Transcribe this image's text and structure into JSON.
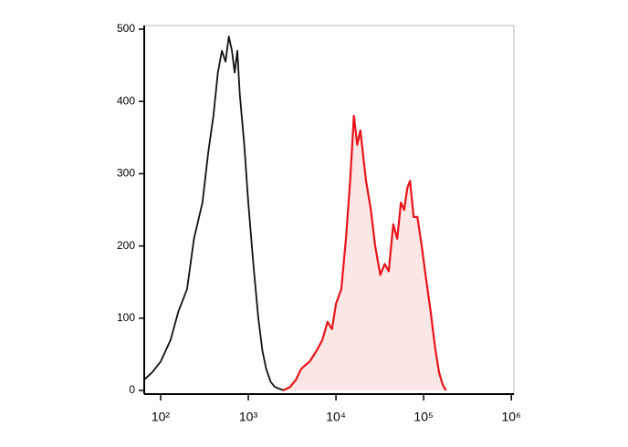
{
  "chart_data": {
    "type": "line",
    "xscale": "log",
    "xlim": [
      65,
      1070000
    ],
    "ylim": [
      -5,
      505
    ],
    "xticks": [
      {
        "value": 100,
        "label": "10²"
      },
      {
        "value": 1000,
        "label": "10³"
      },
      {
        "value": 10000,
        "label": "10⁴"
      },
      {
        "value": 100000,
        "label": "10⁵"
      },
      {
        "value": 1000000,
        "label": "10⁶"
      }
    ],
    "yticks": [
      0,
      100,
      200,
      300,
      400,
      500
    ],
    "series": [
      {
        "color": "#111111",
        "fill": null,
        "x": [
          65,
          80,
          100,
          130,
          160,
          200,
          240,
          300,
          350,
          400,
          450,
          500,
          550,
          600,
          650,
          700,
          750,
          800,
          900,
          1000,
          1150,
          1300,
          1450,
          1600,
          1800,
          2000,
          2300,
          2600
        ],
        "values": [
          15,
          25,
          40,
          70,
          110,
          140,
          210,
          260,
          330,
          380,
          440,
          470,
          455,
          490,
          470,
          440,
          470,
          410,
          340,
          260,
          170,
          100,
          55,
          30,
          12,
          5,
          2,
          0
        ]
      },
      {
        "color": "#e8141a",
        "fill": "#fde6e6",
        "x": [
          2500,
          3000,
          3500,
          4000,
          5000,
          6000,
          7000,
          8000,
          9000,
          10000,
          11500,
          13000,
          14500,
          16000,
          17500,
          19000,
          22000,
          25000,
          28000,
          32000,
          36000,
          40000,
          45000,
          50000,
          55000,
          60000,
          65000,
          70000,
          77000,
          85000,
          95000,
          105000,
          120000,
          135000,
          150000,
          165000,
          180000
        ],
        "values": [
          0,
          5,
          15,
          30,
          40,
          55,
          70,
          95,
          85,
          120,
          140,
          210,
          290,
          380,
          340,
          360,
          290,
          250,
          200,
          160,
          175,
          165,
          230,
          210,
          260,
          250,
          280,
          290,
          240,
          240,
          200,
          160,
          110,
          60,
          25,
          8,
          0
        ]
      }
    ]
  }
}
